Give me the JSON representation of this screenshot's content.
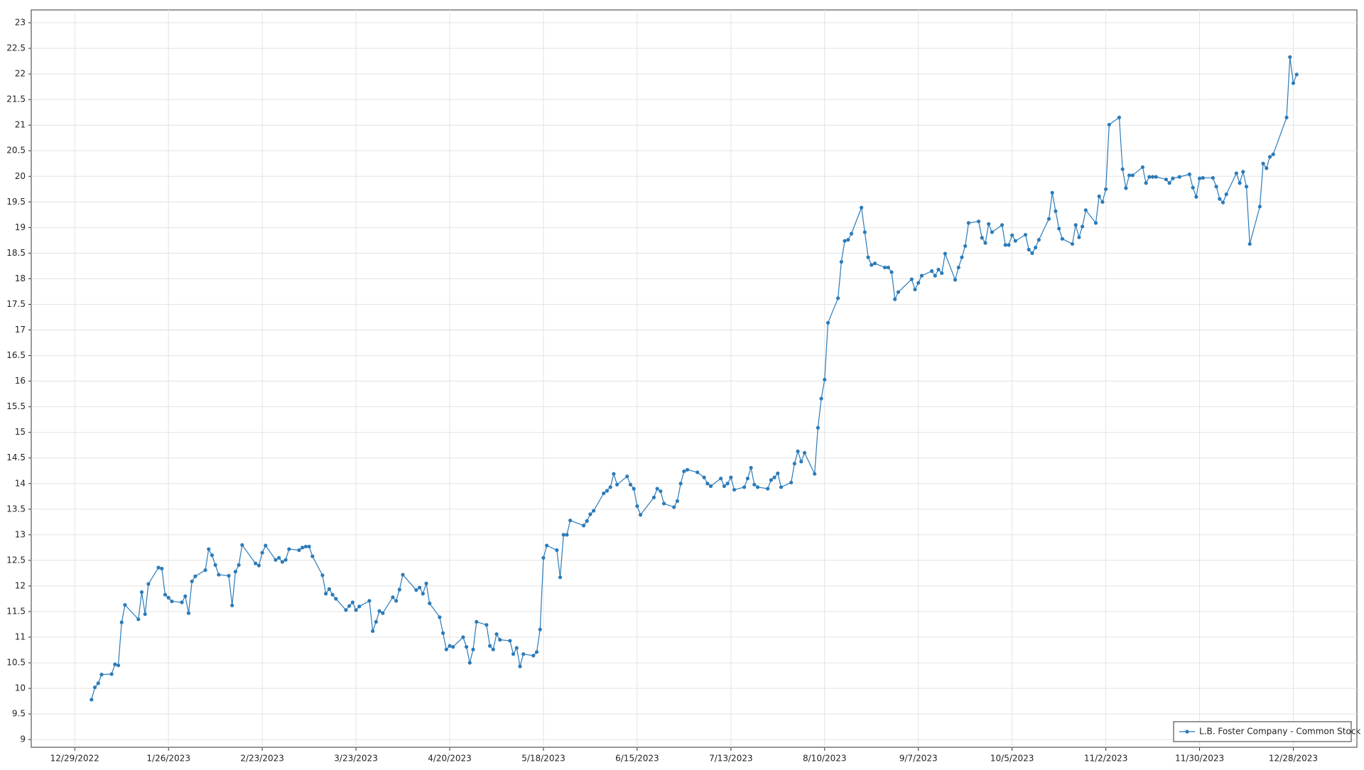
{
  "chart_data": {
    "type": "line",
    "x": [
      "1/3/2023",
      "1/4/2023",
      "1/5/2023",
      "1/6/2023",
      "1/9/2023",
      "1/10/2023",
      "1/11/2023",
      "1/12/2023",
      "1/13/2023",
      "1/17/2023",
      "1/18/2023",
      "1/19/2023",
      "1/20/2023",
      "1/23/2023",
      "1/24/2023",
      "1/25/2023",
      "1/26/2023",
      "1/27/2023",
      "1/30/2023",
      "1/31/2023",
      "2/1/2023",
      "2/2/2023",
      "2/3/2023",
      "2/6/2023",
      "2/7/2023",
      "2/8/2023",
      "2/9/2023",
      "2/10/2023",
      "2/13/2023",
      "2/14/2023",
      "2/15/2023",
      "2/16/2023",
      "2/17/2023",
      "2/21/2023",
      "2/22/2023",
      "2/23/2023",
      "2/24/2023",
      "2/27/2023",
      "2/28/2023",
      "3/1/2023",
      "3/2/2023",
      "3/3/2023",
      "3/6/2023",
      "3/7/2023",
      "3/8/2023",
      "3/9/2023",
      "3/10/2023",
      "3/13/2023",
      "3/14/2023",
      "3/15/2023",
      "3/16/2023",
      "3/17/2023",
      "3/20/2023",
      "3/21/2023",
      "3/22/2023",
      "3/23/2023",
      "3/24/2023",
      "3/27/2023",
      "3/28/2023",
      "3/29/2023",
      "3/30/2023",
      "3/31/2023",
      "4/3/2023",
      "4/4/2023",
      "4/5/2023",
      "4/6/2023",
      "4/10/2023",
      "4/11/2023",
      "4/12/2023",
      "4/13/2023",
      "4/14/2023",
      "4/17/2023",
      "4/18/2023",
      "4/19/2023",
      "4/20/2023",
      "4/21/2023",
      "4/24/2023",
      "4/25/2023",
      "4/26/2023",
      "4/27/2023",
      "4/28/2023",
      "5/1/2023",
      "5/2/2023",
      "5/3/2023",
      "5/4/2023",
      "5/5/2023",
      "5/8/2023",
      "5/9/2023",
      "5/10/2023",
      "5/11/2023",
      "5/12/2023",
      "5/15/2023",
      "5/16/2023",
      "5/17/2023",
      "5/18/2023",
      "5/19/2023",
      "5/22/2023",
      "5/23/2023",
      "5/24/2023",
      "5/25/2023",
      "5/26/2023",
      "5/30/2023",
      "5/31/2023",
      "6/1/2023",
      "6/2/2023",
      "6/5/2023",
      "6/6/2023",
      "6/7/2023",
      "6/8/2023",
      "6/9/2023",
      "6/12/2023",
      "6/13/2023",
      "6/14/2023",
      "6/15/2023",
      "6/16/2023",
      "6/20/2023",
      "6/21/2023",
      "6/22/2023",
      "6/23/2023",
      "6/26/2023",
      "6/27/2023",
      "6/28/2023",
      "6/29/2023",
      "6/30/2023",
      "7/3/2023",
      "7/5/2023",
      "7/6/2023",
      "7/7/2023",
      "7/10/2023",
      "7/11/2023",
      "7/12/2023",
      "7/13/2023",
      "7/14/2023",
      "7/17/2023",
      "7/18/2023",
      "7/19/2023",
      "7/20/2023",
      "7/21/2023",
      "7/24/2023",
      "7/25/2023",
      "7/26/2023",
      "7/27/2023",
      "7/28/2023",
      "7/31/2023",
      "8/1/2023",
      "8/2/2023",
      "8/3/2023",
      "8/4/2023",
      "8/7/2023",
      "8/8/2023",
      "8/9/2023",
      "8/10/2023",
      "8/11/2023",
      "8/14/2023",
      "8/15/2023",
      "8/16/2023",
      "8/17/2023",
      "8/18/2023",
      "8/21/2023",
      "8/22/2023",
      "8/23/2023",
      "8/24/2023",
      "8/25/2023",
      "8/28/2023",
      "8/29/2023",
      "8/30/2023",
      "8/31/2023",
      "9/1/2023",
      "9/5/2023",
      "9/6/2023",
      "9/7/2023",
      "9/8/2023",
      "9/11/2023",
      "9/12/2023",
      "9/13/2023",
      "9/14/2023",
      "9/15/2023",
      "9/18/2023",
      "9/19/2023",
      "9/20/2023",
      "9/21/2023",
      "9/22/2023",
      "9/25/2023",
      "9/26/2023",
      "9/27/2023",
      "9/28/2023",
      "9/29/2023",
      "10/2/2023",
      "10/3/2023",
      "10/4/2023",
      "10/5/2023",
      "10/6/2023",
      "10/9/2023",
      "10/10/2023",
      "10/11/2023",
      "10/12/2023",
      "10/13/2023",
      "10/16/2023",
      "10/17/2023",
      "10/18/2023",
      "10/19/2023",
      "10/20/2023",
      "10/23/2023",
      "10/24/2023",
      "10/25/2023",
      "10/26/2023",
      "10/27/2023",
      "10/30/2023",
      "10/31/2023",
      "11/1/2023",
      "11/2/2023",
      "11/3/2023",
      "11/6/2023",
      "11/7/2023",
      "11/8/2023",
      "11/9/2023",
      "11/10/2023",
      "11/13/2023",
      "11/14/2023",
      "11/15/2023",
      "11/16/2023",
      "11/17/2023",
      "11/20/2023",
      "11/21/2023",
      "11/22/2023",
      "11/24/2023",
      "11/27/2023",
      "11/28/2023",
      "11/29/2023",
      "11/30/2023",
      "12/1/2023",
      "12/4/2023",
      "12/5/2023",
      "12/6/2023",
      "12/7/2023",
      "12/8/2023",
      "12/11/2023",
      "12/12/2023",
      "12/13/2023",
      "12/14/2023",
      "12/15/2023",
      "12/18/2023",
      "12/19/2023",
      "12/20/2023",
      "12/21/2023",
      "12/22/2023",
      "12/26/2023",
      "12/27/2023",
      "12/28/2023",
      "12/29/2023"
    ],
    "series": [
      {
        "name": "L.B. Foster Company - Common Stock",
        "color": "#2b7bb9",
        "values": [
          9.78,
          10.02,
          10.1,
          10.27,
          10.28,
          10.47,
          10.45,
          11.29,
          11.63,
          11.35,
          11.88,
          11.45,
          12.04,
          12.36,
          12.34,
          11.83,
          11.77,
          11.7,
          11.68,
          11.8,
          11.47,
          12.09,
          12.19,
          12.31,
          12.72,
          12.6,
          12.41,
          12.22,
          12.2,
          11.62,
          12.28,
          12.41,
          12.8,
          12.44,
          12.4,
          12.65,
          12.79,
          12.51,
          12.55,
          12.47,
          12.51,
          12.72,
          12.7,
          12.75,
          12.77,
          12.77,
          12.58,
          12.21,
          11.85,
          11.94,
          11.83,
          11.75,
          11.53,
          11.61,
          11.68,
          11.53,
          11.6,
          11.71,
          11.12,
          11.3,
          11.51,
          11.47,
          11.78,
          11.71,
          11.93,
          12.22,
          11.92,
          11.97,
          11.85,
          12.05,
          11.66,
          11.39,
          11.08,
          10.76,
          10.83,
          10.81,
          11.0,
          10.81,
          10.5,
          10.76,
          11.3,
          11.24,
          10.83,
          10.76,
          11.06,
          10.95,
          10.93,
          10.67,
          10.79,
          10.43,
          10.67,
          10.64,
          10.71,
          11.15,
          12.55,
          12.79,
          12.7,
          12.17,
          13.0,
          13.0,
          13.28,
          13.18,
          13.27,
          13.4,
          13.47,
          13.81,
          13.86,
          13.93,
          14.19,
          13.98,
          14.14,
          13.98,
          13.9,
          13.56,
          13.39,
          13.73,
          13.9,
          13.85,
          13.61,
          13.54,
          13.66,
          14.0,
          14.24,
          14.27,
          14.22,
          14.12,
          14.0,
          13.95,
          14.1,
          13.95,
          14.0,
          14.12,
          13.88,
          13.93,
          14.1,
          14.31,
          13.98,
          13.93,
          13.9,
          14.07,
          14.12,
          14.2,
          13.93,
          14.02,
          14.39,
          14.63,
          14.43,
          14.6,
          14.19,
          15.09,
          15.66,
          16.03,
          17.14,
          17.62,
          18.33,
          18.74,
          18.76,
          18.88,
          19.39,
          18.91,
          18.42,
          18.27,
          18.3,
          18.22,
          18.22,
          18.13,
          17.6,
          17.74,
          17.99,
          17.79,
          17.92,
          18.06,
          18.15,
          18.06,
          18.18,
          18.11,
          18.49,
          17.98,
          18.22,
          18.42,
          18.64,
          19.09,
          19.12,
          18.8,
          18.7,
          19.07,
          18.91,
          19.05,
          18.66,
          18.66,
          18.85,
          18.74,
          18.86,
          18.57,
          18.5,
          18.61,
          18.76,
          19.17,
          19.68,
          19.32,
          18.98,
          18.78,
          18.68,
          19.05,
          18.81,
          19.02,
          19.34,
          19.09,
          19.61,
          19.5,
          19.75,
          21.01,
          21.15,
          20.14,
          19.77,
          20.02,
          20.02,
          20.18,
          19.87,
          19.99,
          19.99,
          19.99,
          19.94,
          19.87,
          19.96,
          19.99,
          20.04,
          19.78,
          19.6,
          19.96,
          19.97,
          19.97,
          19.8,
          19.56,
          19.49,
          19.65,
          20.06,
          19.87,
          20.09,
          19.8,
          18.68,
          19.41,
          20.25,
          20.16,
          20.38,
          20.43,
          21.15,
          22.33,
          21.82,
          21.99
        ]
      }
    ],
    "xlim": [
      "12/16/2022",
      "1/16/2024"
    ],
    "xticks": [
      "12/29/2022",
      "1/26/2023",
      "2/23/2023",
      "3/23/2023",
      "4/20/2023",
      "5/18/2023",
      "6/15/2023",
      "7/13/2023",
      "8/10/2023",
      "9/7/2023",
      "10/5/2023",
      "11/2/2023",
      "11/30/2023",
      "12/28/2023"
    ],
    "ylim": [
      8.85,
      23.25
    ],
    "yticks": [
      9,
      9.5,
      10,
      10.5,
      11,
      11.5,
      12,
      12.5,
      13,
      13.5,
      14,
      14.5,
      15,
      15.5,
      16,
      16.5,
      17,
      17.5,
      18,
      18.5,
      19,
      19.5,
      20,
      20.5,
      21,
      21.5,
      22,
      22.5,
      23
    ],
    "grid": true,
    "legend": "lower right"
  }
}
